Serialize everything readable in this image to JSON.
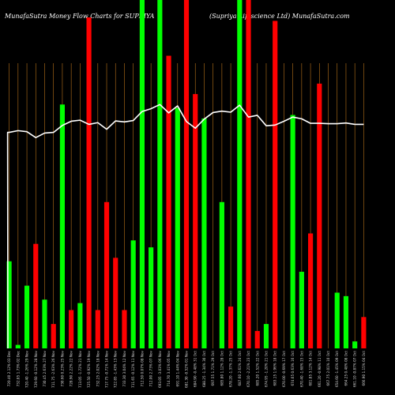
{
  "chart_data": {
    "type": "bar",
    "title_left": "MunafaSutra  Money Flow  Charts for SUPRIYA",
    "title_right": "(Supriya  Lifescience   Ltd) MunafaSutra.com",
    "ylim": [
      0,
      100
    ],
    "line_ylim": [
      0,
      100
    ],
    "bar_colors": {
      "green": "#00ff00",
      "red": "#ff0000"
    },
    "line_color": "#ffffff",
    "grid_color": "#b8731a",
    "bars": [
      {
        "x": "720.40 2.12% 03 Dec",
        "value": 25,
        "color": "green"
      },
      {
        "x": "732.85 1.73% 02 Dec",
        "value": 1,
        "color": "green"
      },
      {
        "x": "720.40 -1.26% 29 Nov",
        "value": 18,
        "color": "green"
      },
      {
        "x": "729.60 -0.12% 28 Nov",
        "value": 30,
        "color": "red"
      },
      {
        "x": "730.45 2.63% 27 Nov",
        "value": 14,
        "color": "green"
      },
      {
        "x": "711.75 -2.63% 26 Nov",
        "value": 7,
        "color": "red"
      },
      {
        "x": "730.60 0.23% 25 Nov",
        "value": 70,
        "color": "green"
      },
      {
        "x": "728.90 2.22% 22 Nov",
        "value": 11,
        "color": "red"
      },
      {
        "x": "713.05 -1.72% 21 Nov",
        "value": 13,
        "color": "green"
      },
      {
        "x": "725.50 -0.92% 19 Nov",
        "value": 95,
        "color": "red"
      },
      {
        "x": "732.25 2.02% 18 Nov",
        "value": 11,
        "color": "red"
      },
      {
        "x": "717.75 -0.71% 14 Nov",
        "value": 42,
        "color": "red"
      },
      {
        "x": "722.85 -1.43% 13 Nov",
        "value": 26,
        "color": "red"
      },
      {
        "x": "733.30 3.04% 12 Nov",
        "value": 11,
        "color": "red"
      },
      {
        "x": "711.65 -0.12% 11 Nov",
        "value": 31,
        "color": "green"
      },
      {
        "x": "712.50 0.07% 08 Nov",
        "value": 100,
        "color": "green"
      },
      {
        "x": "712.00 2.73% 07 Nov",
        "value": 29,
        "color": "green"
      },
      {
        "x": "693.05 -3.03% 06 Nov",
        "value": 100,
        "color": "green"
      },
      {
        "x": "714.70 3.41% 05 Nov",
        "value": 84,
        "color": "red"
      },
      {
        "x": "691.10 1.44% 04 Nov",
        "value": 69,
        "color": "green"
      },
      {
        "x": "681.30 -0.52% 01 Nov",
        "value": 100,
        "color": "red"
      },
      {
        "x": "684.90 -0.48% 31 Oct",
        "value": 73,
        "color": "red"
      },
      {
        "x": "688.25 -1.34% 30 Oct",
        "value": 66,
        "color": "green"
      },
      {
        "x": "697.55 1.71% 29 Oct",
        "value": 0,
        "color": "red"
      },
      {
        "x": "685.80 1.12% 28 Oct",
        "value": 42,
        "color": "green"
      },
      {
        "x": "678.20 -1.37% 25 Oct",
        "value": 12,
        "color": "red"
      },
      {
        "x": "687.60 2.61% 24 Oct",
        "value": 100,
        "color": "green"
      },
      {
        "x": "670.10 -2.21% 23 Oct",
        "value": 100,
        "color": "red"
      },
      {
        "x": "685.20 1.52% 22 Oct",
        "value": 5,
        "color": "red"
      },
      {
        "x": "674.95 -1.20% 21 Oct",
        "value": 7,
        "color": "green"
      },
      {
        "x": "683.15 1.96% 18 Oct",
        "value": 94,
        "color": "red"
      },
      {
        "x": "670.00 -0.69% 17 Oct",
        "value": 0,
        "color": "green"
      },
      {
        "x": "674.65 0.63% 16 Oct",
        "value": 67,
        "color": "green"
      },
      {
        "x": "670.40 -1.68% 15 Oct",
        "value": 22,
        "color": "green"
      },
      {
        "x": "681.85 3.12% 14 Oct",
        "value": 33,
        "color": "red"
      },
      {
        "x": "661.20 -0.98% 11 Oct",
        "value": 76,
        "color": "red"
      },
      {
        "x": "667.75 2.01% 10 Oct",
        "value": 0,
        "color": "red"
      },
      {
        "x": "654.60 -1.45% 09 Oct",
        "value": 16,
        "color": "green"
      },
      {
        "x": "664.25 0.48% 08 Oct",
        "value": 15,
        "color": "green"
      },
      {
        "x": "661.10 -0.87% 07 Oct",
        "value": 2,
        "color": "green"
      },
      {
        "x": "666.90 1.15% 04 Oct",
        "value": 9,
        "color": "red"
      }
    ],
    "line": [
      62,
      62.5,
      62.2,
      60.5,
      61.8,
      62,
      64,
      65.2,
      65.5,
      64.3,
      64.8,
      62.9,
      65.3,
      65,
      65.4,
      68,
      68.8,
      70,
      67.6,
      69.6,
      65.1,
      63.2,
      65.8,
      67.7,
      68.1,
      67.8,
      69.8,
      66.4,
      66.9,
      63.9,
      64.1,
      65.2,
      66.4,
      65.9,
      64.6,
      64.6,
      64.5,
      64.5,
      64.7,
      64.3,
      64.3
    ]
  }
}
